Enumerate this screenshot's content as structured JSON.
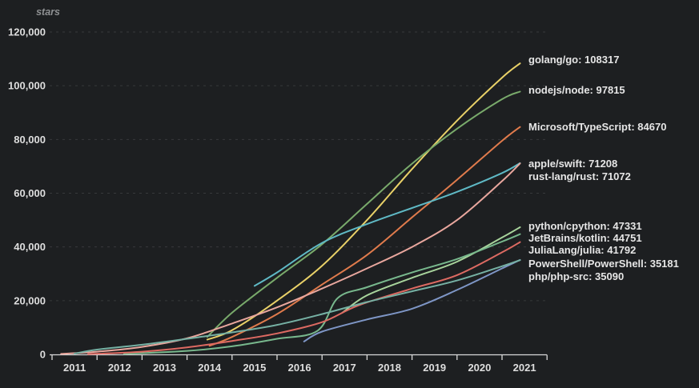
{
  "chart": {
    "background_color": "#1d1f21",
    "axis_color": "#d9d9d9",
    "grid_color": "#37393b",
    "tick_label_color": "#dedede",
    "series_label_color": "#e6e6e6",
    "axis_title_color": "#8f9193"
  },
  "chart_data": {
    "type": "line",
    "title": "",
    "xlabel": "",
    "ylabel": "stars",
    "xlim": [
      2010.9,
      2022
    ],
    "ylim": [
      0,
      120000
    ],
    "grid": "horizontal-dashed",
    "legend_position": "right-end-of-line-labels",
    "x_tick_labels": [
      "2011",
      "2012",
      "2013",
      "2014",
      "2015",
      "2016",
      "2017",
      "2018",
      "2019",
      "2020",
      "2021"
    ],
    "y_ticks": [
      {
        "value": 0,
        "label": "0"
      },
      {
        "value": 20000,
        "label": "20,000"
      },
      {
        "value": 40000,
        "label": "40,000"
      },
      {
        "value": 60000,
        "label": "60,000"
      },
      {
        "value": 80000,
        "label": "80,000"
      },
      {
        "value": 100000,
        "label": "100,000"
      },
      {
        "value": 120000,
        "label": "120,000"
      }
    ],
    "series": [
      {
        "name": "golang/go",
        "final_value": 108317,
        "end_label": "golang/go: 108317",
        "color": "#e9d168",
        "label_y": 75,
        "points": [
          [
            2014.45,
            5500
          ],
          [
            2015,
            9000
          ],
          [
            2016,
            20000
          ],
          [
            2017,
            33000
          ],
          [
            2018,
            50000
          ],
          [
            2019,
            69000
          ],
          [
            2020,
            87000
          ],
          [
            2021,
            103000
          ],
          [
            2021.4,
            108317
          ]
        ]
      },
      {
        "name": "nodejs/node",
        "final_value": 97815,
        "end_label": "nodejs/node: 97815",
        "color": "#79aa6b",
        "label_y": 113,
        "points": [
          [
            2014.45,
            6500
          ],
          [
            2015,
            15500
          ],
          [
            2016,
            28500
          ],
          [
            2017,
            41000
          ],
          [
            2018,
            56000
          ],
          [
            2019,
            71000
          ],
          [
            2020,
            84000
          ],
          [
            2021,
            95000
          ],
          [
            2021.4,
            97815
          ]
        ]
      },
      {
        "name": "Microsoft/TypeScript",
        "final_value": 84670,
        "end_label": "Microsoft/TypeScript: 84670",
        "color": "#e07b4c",
        "label_y": 159,
        "points": [
          [
            2014.5,
            3200
          ],
          [
            2015,
            6500
          ],
          [
            2016,
            15000
          ],
          [
            2017,
            26000
          ],
          [
            2018,
            37000
          ],
          [
            2019,
            51000
          ],
          [
            2020,
            65000
          ],
          [
            2021,
            79500
          ],
          [
            2021.4,
            84670
          ]
        ]
      },
      {
        "name": "apple/swift",
        "final_value": 71208,
        "end_label": "apple/swift: 71208",
        "color": "#5fb9c5",
        "label_y": 205,
        "points": [
          [
            2015.5,
            25500
          ],
          [
            2016,
            30500
          ],
          [
            2017,
            41500
          ],
          [
            2018,
            48500
          ],
          [
            2019,
            54500
          ],
          [
            2020,
            60500
          ],
          [
            2021,
            67500
          ],
          [
            2021.4,
            71208
          ]
        ]
      },
      {
        "name": "rust-lang/rust",
        "final_value": 71072,
        "end_label": "rust-lang/rust: 71072",
        "color": "#e9a79e",
        "label_y": 221,
        "points": [
          [
            2011.2,
            200
          ],
          [
            2012,
            1000
          ],
          [
            2013,
            2800
          ],
          [
            2014,
            6000
          ],
          [
            2015,
            11500
          ],
          [
            2016,
            17500
          ],
          [
            2017,
            24500
          ],
          [
            2018,
            32000
          ],
          [
            2019,
            40000
          ],
          [
            2020,
            50000
          ],
          [
            2021,
            64500
          ],
          [
            2021.4,
            71072
          ]
        ]
      },
      {
        "name": "python/cpython",
        "final_value": 47331,
        "end_label": "python/cpython: 47331",
        "color": "#a8d49c",
        "label_y": 283,
        "points": [
          [
            2017.45,
            15500
          ],
          [
            2018,
            22000
          ],
          [
            2019,
            28500
          ],
          [
            2020,
            34500
          ],
          [
            2021,
            43500
          ],
          [
            2021.4,
            47331
          ]
        ]
      },
      {
        "name": "JetBrains/kotlin",
        "final_value": 44751,
        "end_label": "JetBrains/kotlin: 44751",
        "color": "#78b88d",
        "label_y": 298,
        "points": [
          [
            2012.6,
            200
          ],
          [
            2014,
            1300
          ],
          [
            2015,
            3000
          ],
          [
            2016,
            5800
          ],
          [
            2016.9,
            8800
          ],
          [
            2017.35,
            21000
          ],
          [
            2018,
            25000
          ],
          [
            2019,
            30500
          ],
          [
            2020,
            35500
          ],
          [
            2021,
            42000
          ],
          [
            2021.4,
            44751
          ]
        ]
      },
      {
        "name": "JuliaLang/julia",
        "final_value": 41792,
        "end_label": "JuliaLang/julia: 41792",
        "color": "#dd6a62",
        "label_y": 313,
        "points": [
          [
            2011.8,
            100
          ],
          [
            2013,
            1000
          ],
          [
            2014,
            2600
          ],
          [
            2015,
            5000
          ],
          [
            2016,
            7800
          ],
          [
            2017,
            12000
          ],
          [
            2017.8,
            18200
          ],
          [
            2019,
            24500
          ],
          [
            2020,
            29500
          ],
          [
            2021,
            38000
          ],
          [
            2021.4,
            41792
          ]
        ]
      },
      {
        "name": "PowerShell/PowerShell",
        "final_value": 35181,
        "end_label": "PowerShell/PowerShell: 35181",
        "color": "#7e96c6",
        "label_y": 330,
        "points": [
          [
            2016.6,
            4800
          ],
          [
            2017,
            8500
          ],
          [
            2018,
            13000
          ],
          [
            2019,
            17000
          ],
          [
            2020,
            24000
          ],
          [
            2021,
            32000
          ],
          [
            2021.4,
            35181
          ]
        ]
      },
      {
        "name": "php/php-src",
        "final_value": 35090,
        "end_label": "php/php-src: 35090",
        "color": "#76b1a4",
        "label_y": 346,
        "points": [
          [
            2011.5,
            300
          ],
          [
            2012,
            1800
          ],
          [
            2013,
            3600
          ],
          [
            2014,
            5800
          ],
          [
            2015,
            8200
          ],
          [
            2016,
            11000
          ],
          [
            2017,
            15000
          ],
          [
            2018,
            19500
          ],
          [
            2019,
            23500
          ],
          [
            2020,
            27500
          ],
          [
            2021,
            32800
          ],
          [
            2021.4,
            35090
          ]
        ]
      }
    ]
  }
}
